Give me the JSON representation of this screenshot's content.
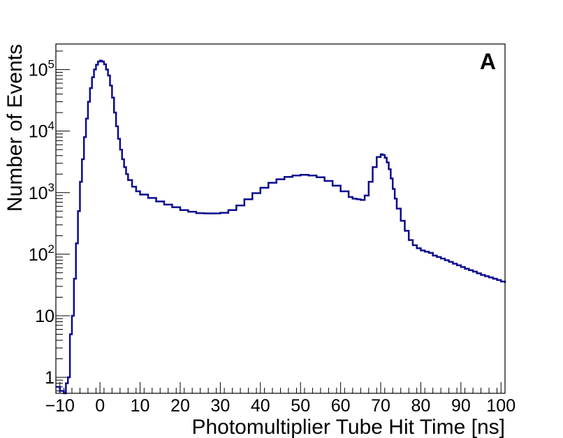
{
  "chart_data": {
    "type": "line",
    "style": "step-histogram",
    "panel_label": "A",
    "xlabel": "Photomultiplier Tube Hit Time [ns]",
    "ylabel": "Number of Events",
    "xlim": [
      -11,
      101
    ],
    "ylim": [
      0.55,
      260000
    ],
    "y_scale": "log",
    "grid": false,
    "line_color": "#0b0b8f",
    "x_ticks": [
      -10,
      0,
      10,
      20,
      30,
      40,
      50,
      60,
      70,
      80,
      90,
      100
    ],
    "x_tick_labels": [
      "−10",
      "0",
      "10",
      "20",
      "30",
      "40",
      "50",
      "60",
      "70",
      "80",
      "90",
      "100"
    ],
    "y_ticks": [
      {
        "value": 1,
        "base": "1",
        "exp": ""
      },
      {
        "value": 10,
        "base": "10",
        "exp": ""
      },
      {
        "value": 100,
        "base": "10",
        "exp": "2"
      },
      {
        "value": 1000,
        "base": "10",
        "exp": "3"
      },
      {
        "value": 10000,
        "base": "10",
        "exp": "4"
      },
      {
        "value": 100000,
        "base": "10",
        "exp": "5"
      }
    ],
    "series": [
      {
        "x": [
          -11,
          -10,
          -9,
          -8.5,
          -8,
          -7.5,
          -7,
          -6.5,
          -6,
          -5.5,
          -5,
          -4.5,
          -4,
          -3.5,
          -3,
          -2.5,
          -2,
          -1.5,
          -1,
          -0.5,
          0,
          0.5,
          1,
          1.5,
          2,
          2.5,
          3,
          3.5,
          4,
          4.5,
          5,
          5.5,
          6,
          6.5,
          7,
          8,
          9,
          10,
          12,
          14,
          16,
          18,
          20,
          22,
          24,
          26,
          28,
          30,
          32,
          34,
          36,
          38,
          40,
          42,
          44,
          46,
          48,
          50,
          52,
          54,
          56,
          58,
          60,
          62,
          63,
          64,
          65,
          66,
          67,
          68,
          69,
          70,
          70.5,
          71,
          71.5,
          72,
          72.5,
          73,
          73.5,
          74,
          75,
          76,
          77,
          78,
          79,
          80,
          81,
          82,
          83,
          84,
          85,
          86,
          87,
          88,
          89,
          90,
          91,
          92,
          93,
          94,
          95,
          96,
          97,
          98,
          99,
          100,
          101
        ],
        "y": [
          0.7,
          0.6,
          0.5,
          0.8,
          1,
          5,
          10,
          40,
          150,
          500,
          1500,
          3500,
          8000,
          16000,
          30000,
          50000,
          75000,
          100000,
          120000,
          135000,
          140000,
          135000,
          122000,
          100000,
          80000,
          55000,
          35000,
          20000,
          12000,
          7500,
          5000,
          3500,
          2600,
          2000,
          1600,
          1250,
          1050,
          930,
          820,
          720,
          640,
          580,
          520,
          490,
          465,
          460,
          460,
          470,
          520,
          620,
          780,
          980,
          1200,
          1450,
          1650,
          1800,
          1900,
          1950,
          1900,
          1780,
          1550,
          1300,
          1050,
          850,
          800,
          780,
          760,
          900,
          1500,
          2600,
          3800,
          4200,
          4100,
          3700,
          3100,
          2400,
          1700,
          1150,
          800,
          550,
          350,
          240,
          170,
          140,
          125,
          115,
          110,
          105,
          95,
          90,
          85,
          80,
          75,
          70,
          66,
          62,
          58,
          55,
          52,
          49,
          46,
          44,
          42,
          40,
          38,
          36,
          34
        ]
      }
    ]
  }
}
